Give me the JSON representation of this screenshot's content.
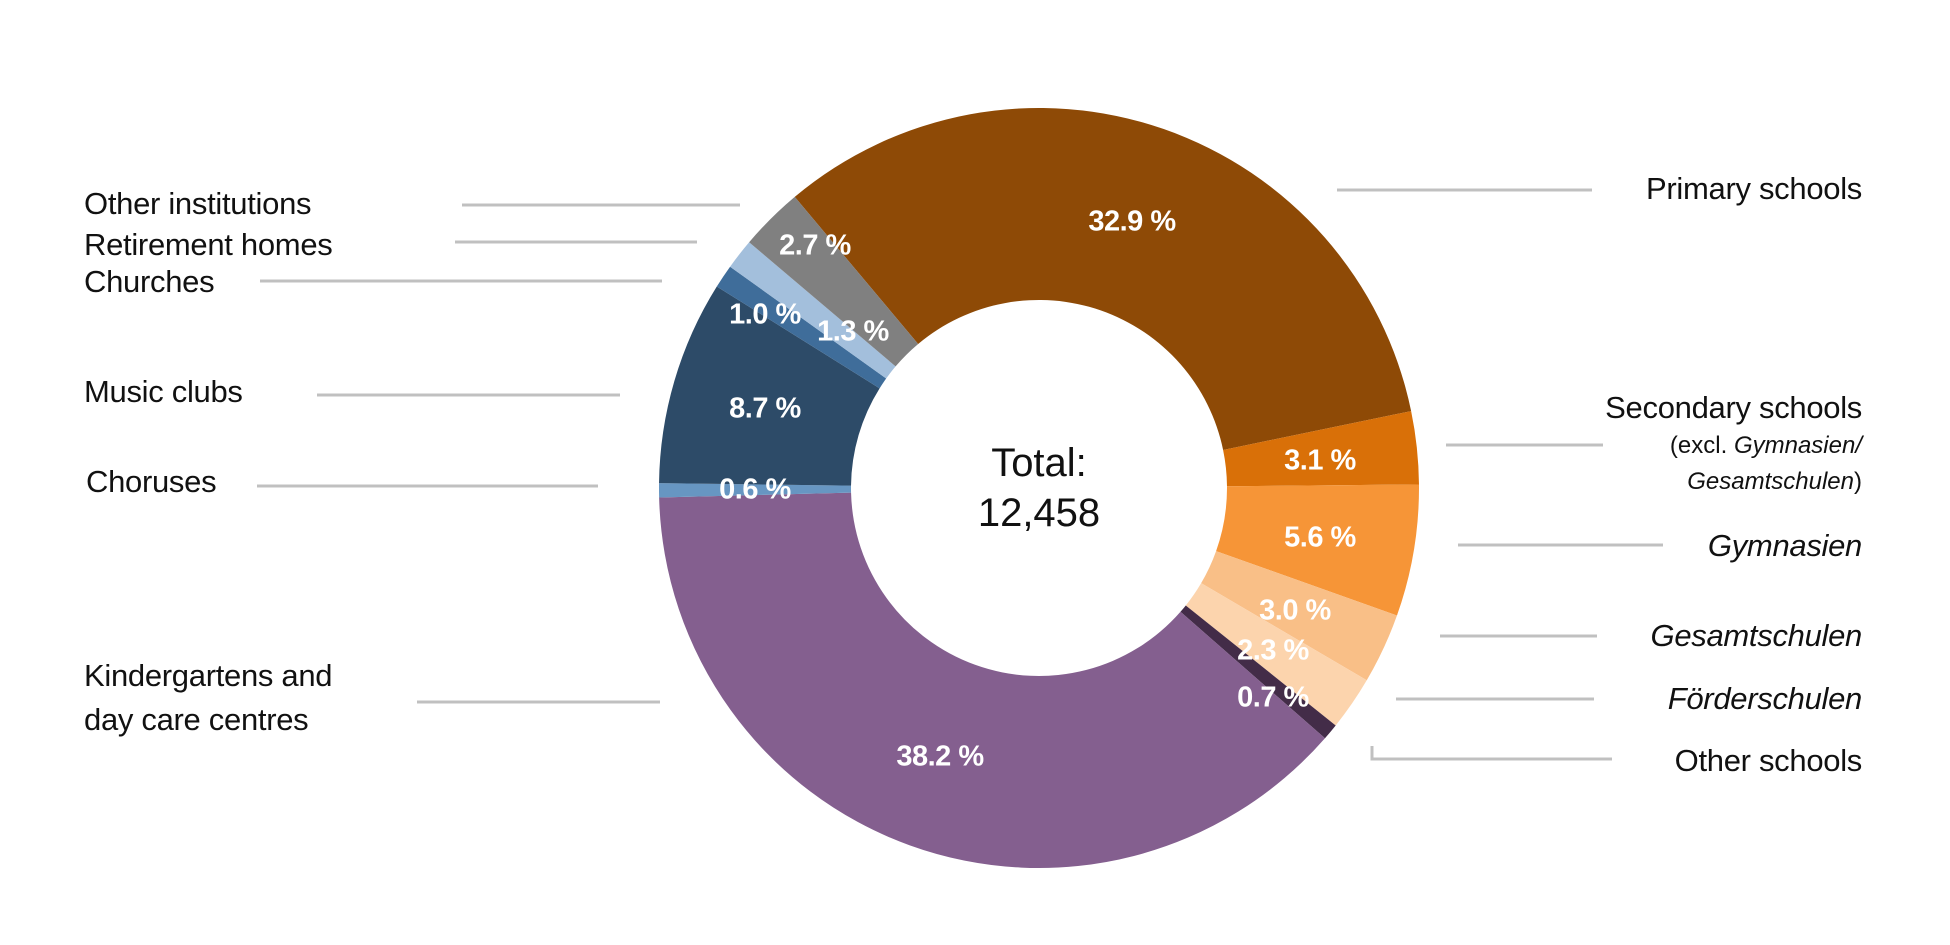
{
  "chart_data": {
    "type": "pie",
    "subtype": "donut",
    "title": "",
    "center_label": "Total:",
    "center_value": "12,458",
    "total": 12458,
    "unit": "%",
    "start_angle_deg": -40,
    "direction": "clockwise",
    "legend_position": "callout labels with leader lines",
    "categories": [
      "Primary schools",
      "Secondary schools (excl. Gymnasien/Gesamtschulen)",
      "Gymnasien",
      "Gesamtschulen",
      "Förderschulen",
      "Other schools",
      "Kindergartens and day care centres",
      "Choruses",
      "Music clubs",
      "Churches",
      "Retirement homes",
      "Other institutions"
    ],
    "values": [
      32.9,
      3.1,
      5.6,
      3.0,
      2.3,
      0.7,
      38.2,
      0.6,
      8.7,
      1.0,
      1.3,
      2.7
    ],
    "value_labels": [
      "32.9 %",
      "3.1 %",
      "5.6 %",
      "3.0 %",
      "2.3 %",
      "0.7 %",
      "38.2 %",
      "0.6 %",
      "8.7 %",
      "1.0 %",
      "1.3 %",
      "2.7 %"
    ],
    "colors": [
      "#8e4a06",
      "#d97008",
      "#f69537",
      "#f9bf87",
      "#fcd4ad",
      "#432c48",
      "#845f8f",
      "#6796c2",
      "#2d4b68",
      "#3f6d9a",
      "#a3bfdc",
      "#808080"
    ]
  },
  "labels": {
    "other_institutions": "Other institutions",
    "retirement_homes": "Retirement homes",
    "churches": "Churches",
    "music_clubs": "Music clubs",
    "choruses": "Choruses",
    "kindergartens_line1": "Kindergartens and",
    "kindergartens_line2": "day care centres",
    "primary_schools": "Primary schools",
    "secondary_schools": "Secondary schools",
    "secondary_sub_prefix": "(excl. ",
    "secondary_sub_italic1": "Gymnasien/",
    "secondary_sub_italic2": "Gesamtschulen",
    "secondary_sub_suffix": ")",
    "gymnasien": "Gymnasien",
    "gesamtschulen": "Gesamtschulen",
    "foerderschulen": "Förderschulen",
    "other_schools": "Other schools"
  },
  "colors": {
    "leader_line": "#c0c0c0",
    "text": "#111111",
    "slice_label": "#ffffff"
  }
}
